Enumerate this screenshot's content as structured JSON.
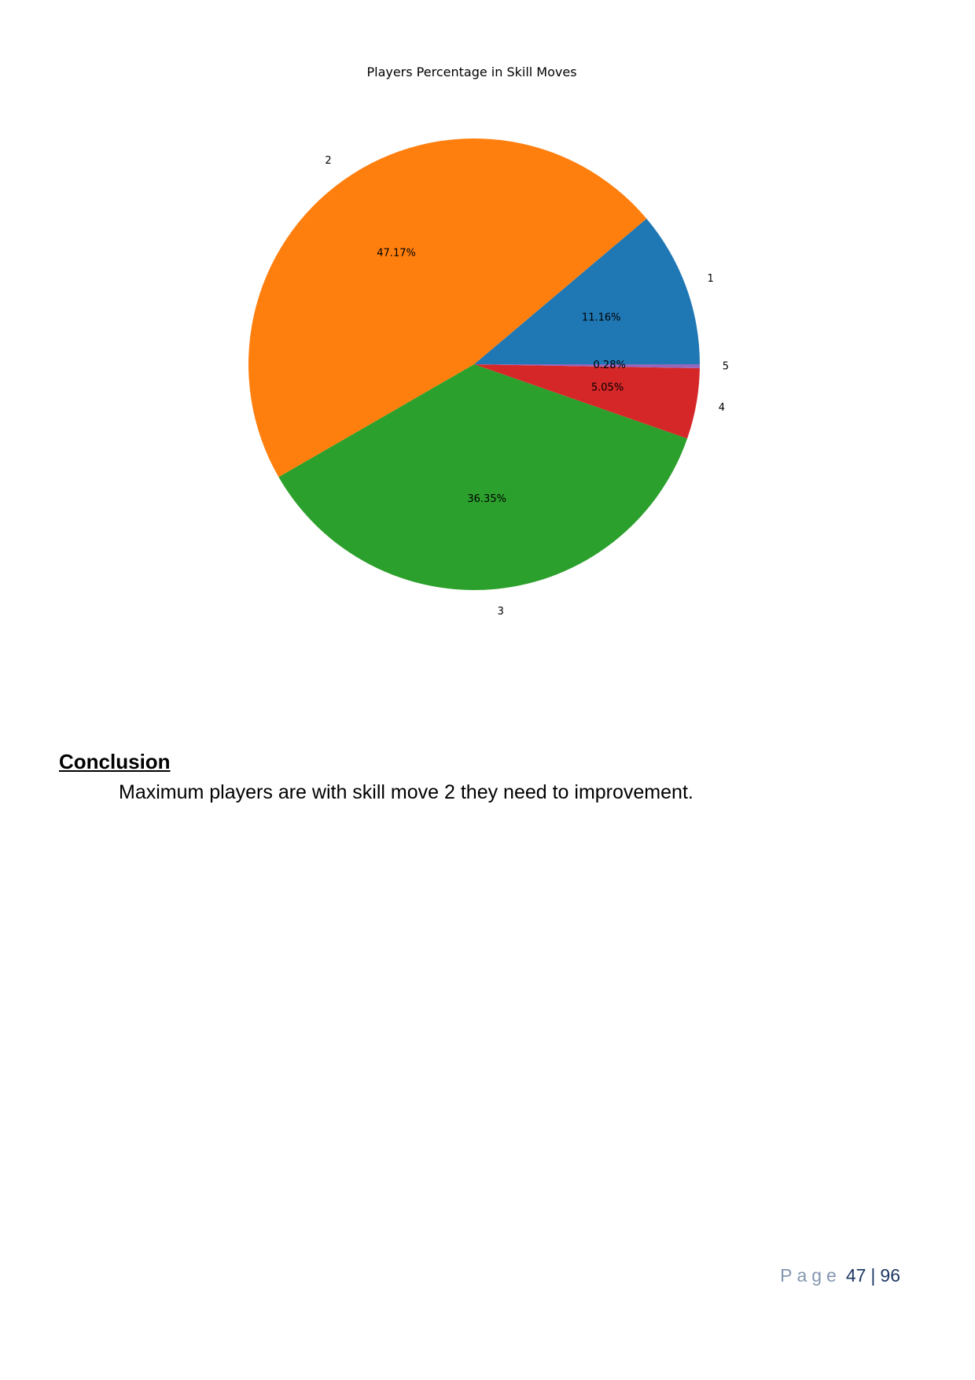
{
  "chart_data": {
    "type": "pie",
    "title": "Players Percentage in Skill Moves",
    "categories": [
      "1",
      "2",
      "3",
      "4",
      "5"
    ],
    "values": [
      11.16,
      47.17,
      36.35,
      5.05,
      0.28
    ],
    "value_labels": [
      "11.16%",
      "47.17%",
      "36.35%",
      "5.05%",
      "0.28%"
    ],
    "colors": [
      "#1f77b4",
      "#ff7f0e",
      "#2ca02c",
      "#d62728",
      "#9467bd"
    ],
    "start_angle_deg": 0,
    "direction": "counterclockwise",
    "legend": "none"
  },
  "conclusion": {
    "heading": "Conclusion",
    "text": "Maximum players are with skill move 2 they need to improvement."
  },
  "footer": {
    "page_word": "Page",
    "page_number": "47",
    "separator": "|",
    "total_pages": "96"
  }
}
